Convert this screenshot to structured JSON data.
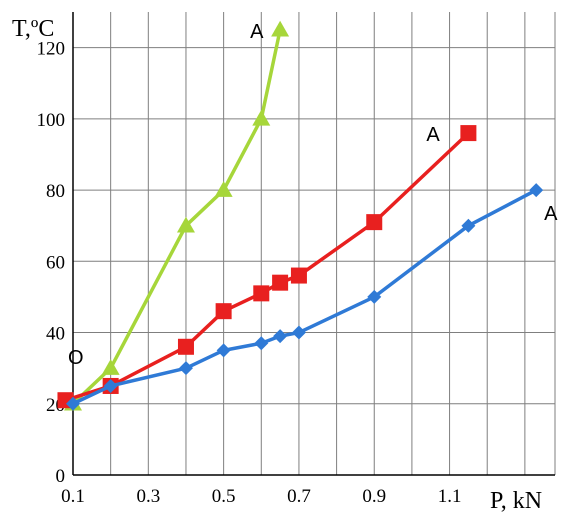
{
  "chart_data": {
    "type": "line",
    "xlabel": "P, kN",
    "ylabel": "T,ºC",
    "xlim": [
      0.1,
      1.38
    ],
    "ylim": [
      0,
      130
    ],
    "xticks": [
      0.1,
      0.3,
      0.5,
      0.7,
      0.9,
      1.1
    ],
    "xtick_labels": [
      "0.1",
      "0.3",
      "0.5",
      "0.7",
      "0.9",
      "1.1"
    ],
    "yticks": [
      0,
      20,
      40,
      60,
      80,
      100,
      120
    ],
    "ytick_labels": [
      "0",
      "20",
      "40",
      "60",
      "80",
      "100",
      "120"
    ],
    "grid": true,
    "legend": "none",
    "series": [
      {
        "color": "#a6d63a",
        "marker": "triangle",
        "x": [
          0.1,
          0.2,
          0.4,
          0.5,
          0.6,
          0.65
        ],
        "y": [
          20,
          30,
          70,
          80,
          100,
          125
        ]
      },
      {
        "color": "#e8201f",
        "marker": "square",
        "x": [
          0.08,
          0.2,
          0.4,
          0.5,
          0.6,
          0.65,
          0.7,
          0.9,
          1.15
        ],
        "y": [
          21,
          25,
          36,
          46,
          51,
          54,
          56,
          71,
          96
        ]
      },
      {
        "color": "#2f7ad6",
        "marker": "diamond",
        "x": [
          0.1,
          0.2,
          0.4,
          0.5,
          0.6,
          0.65,
          0.7,
          0.9,
          1.15,
          1.33
        ],
        "y": [
          20,
          25,
          30,
          35,
          37,
          39,
          40,
          50,
          70,
          80
        ]
      }
    ],
    "annotations": [
      {
        "text": "A",
        "series": 0,
        "point": 5
      },
      {
        "text": "A",
        "series": 1,
        "point": 8
      },
      {
        "text": "A",
        "series": 2,
        "point": 9
      },
      {
        "text": "O",
        "x": 0.1,
        "y": 20
      }
    ]
  }
}
